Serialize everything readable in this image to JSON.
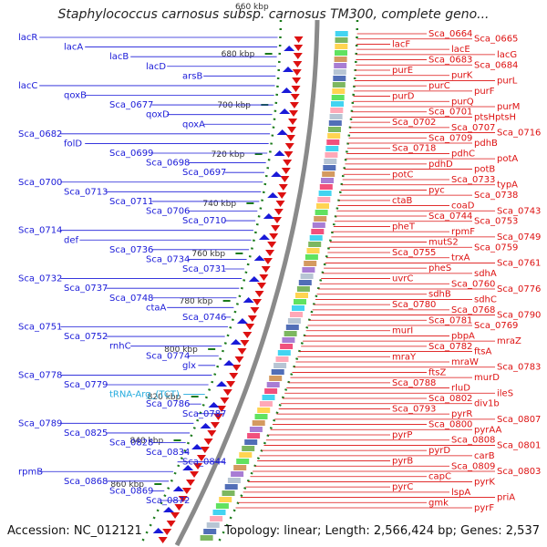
{
  "title": "Staphylococcus carnosus subsp. carnosus TM300, complete geno...",
  "footer": {
    "accession": "Accession: NC_012121",
    "summary": "Topology: linear; Length: 2,566,424 bp; Genes: 2,537"
  },
  "colors": {
    "left_gene": "#1a1ad8",
    "right_gene": "#dd1111",
    "trna": "#22aadd",
    "ruler": "#1a7a1a",
    "backbone": "#8a8a8a"
  },
  "ruler_ticks": [
    "680 kbp",
    "700 kbp",
    "720 kbp",
    "740 kbp",
    "760 kbp",
    "780 kbp",
    "800 kbp",
    "820 kbp",
    "840 kbp",
    "860 kbp"
  ],
  "top_partial_label": "660 kbp",
  "left_labels": [
    {
      "text": "lacR",
      "type": "gene"
    },
    {
      "text": "lacA",
      "type": "gene"
    },
    {
      "text": "lacB",
      "type": "gene"
    },
    {
      "text": "lacD",
      "type": "gene"
    },
    {
      "text": "arsB",
      "type": "gene"
    },
    {
      "text": "lacC",
      "type": "gene"
    },
    {
      "text": "qoxB",
      "type": "gene"
    },
    {
      "text": "Sca_0677",
      "type": "gene"
    },
    {
      "text": "qoxD",
      "type": "gene"
    },
    {
      "text": "qoxA",
      "type": "gene"
    },
    {
      "text": "Sca_0682",
      "type": "gene"
    },
    {
      "text": "folD",
      "type": "gene"
    },
    {
      "text": "Sca_0699",
      "type": "gene"
    },
    {
      "text": "Sca_0698",
      "type": "gene"
    },
    {
      "text": "Sca_0697",
      "type": "gene"
    },
    {
      "text": "Sca_0700",
      "type": "gene"
    },
    {
      "text": "Sca_0713",
      "type": "gene"
    },
    {
      "text": "Sca_0711",
      "type": "gene"
    },
    {
      "text": "Sca_0706",
      "type": "gene"
    },
    {
      "text": "Sca_0710",
      "type": "gene"
    },
    {
      "text": "Sca_0714",
      "type": "gene"
    },
    {
      "text": "def",
      "type": "gene"
    },
    {
      "text": "Sca_0736",
      "type": "gene"
    },
    {
      "text": "Sca_0734",
      "type": "gene"
    },
    {
      "text": "Sca_0731",
      "type": "gene"
    },
    {
      "text": "Sca_0732",
      "type": "gene"
    },
    {
      "text": "Sca_0737",
      "type": "gene"
    },
    {
      "text": "Sca_0748",
      "type": "gene"
    },
    {
      "text": "ctaA",
      "type": "gene"
    },
    {
      "text": "Sca_0746",
      "type": "gene"
    },
    {
      "text": "Sca_0751",
      "type": "gene"
    },
    {
      "text": "Sca_0752",
      "type": "gene"
    },
    {
      "text": "rnhC",
      "type": "gene"
    },
    {
      "text": "Sca_0774",
      "type": "gene"
    },
    {
      "text": "glx",
      "type": "gene"
    },
    {
      "text": "Sca_0778",
      "type": "gene"
    },
    {
      "text": "Sca_0779",
      "type": "gene"
    },
    {
      "text": "tRNA-Arg_(TCT)",
      "type": "trna"
    },
    {
      "text": "Sca_0786",
      "type": "gene"
    },
    {
      "text": "Sca_0787",
      "type": "gene"
    },
    {
      "text": "Sca_0789",
      "type": "gene"
    },
    {
      "text": "Sca_0825",
      "type": "gene"
    },
    {
      "text": "Sca_0828",
      "type": "gene"
    },
    {
      "text": "Sca_0834",
      "type": "gene"
    },
    {
      "text": "Sca_0844",
      "type": "gene"
    },
    {
      "text": "rpmB",
      "type": "gene"
    },
    {
      "text": "Sca_0868",
      "type": "gene"
    },
    {
      "text": "Sca_0869",
      "type": "gene"
    },
    {
      "text": "Sca_0872",
      "type": "gene"
    }
  ],
  "right_labels": [
    "Sca_0664",
    "Sca_0665",
    "lacF",
    "lacE",
    "lacG",
    "Sca_0683",
    "Sca_0684",
    "purE",
    "purK",
    "purL",
    "purC",
    "purF",
    "purD",
    "purQ",
    "purM",
    "Sca_0701",
    "ptsHptsH",
    "Sca_0702",
    "Sca_0707",
    "Sca_0716",
    "Sca_0709",
    "pdhB",
    "Sca_0718",
    "pdhC",
    "potA",
    "pdhD",
    "potB",
    "potC",
    "Sca_0733",
    "typA",
    "pyc",
    "Sca_0738",
    "ctaB",
    "coaD",
    "Sca_0743",
    "Sca_0744",
    "Sca_0753",
    "pheT",
    "rpmF",
    "Sca_0749",
    "mutS2",
    "Sca_0759",
    "Sca_0755",
    "trxA",
    "Sca_0761",
    "pheS",
    "sdhA",
    "uvrC",
    "Sca_0760",
    "Sca_0776",
    "sdhB",
    "sdhC",
    "Sca_0780",
    "Sca_0768",
    "Sca_0790",
    "Sca_0781",
    "Sca_0769",
    "murI",
    "pbpA",
    "mraZ",
    "Sca_0782",
    "ftsA",
    "mraY",
    "mraW",
    "Sca_0783",
    "ftsZ",
    "murD",
    "Sca_0788",
    "rluD",
    "ileS",
    "Sca_0802",
    "div1b",
    "Sca_0793",
    "pyrR",
    "Sca_0807",
    "Sca_0800",
    "pyrAA",
    "pyrP",
    "Sca_0808",
    "Sca_0801",
    "pyrD",
    "carB",
    "pyrB",
    "Sca_0809",
    "Sca_0803",
    "capC",
    "pyrK",
    "pyrC",
    "lspA",
    "priA",
    "gmk",
    "pyrF"
  ]
}
